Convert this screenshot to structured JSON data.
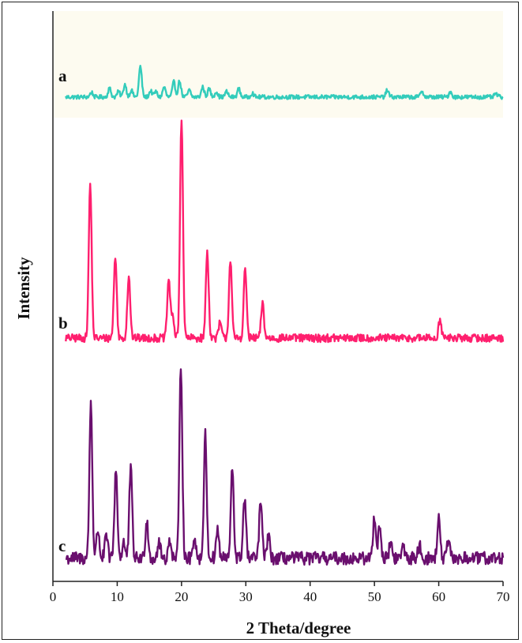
{
  "chart_data": {
    "type": "line",
    "xlabel": "2 Theta/degree",
    "ylabel": "Intensity",
    "xlim": [
      0,
      70
    ],
    "x_ticks": [
      0,
      10,
      20,
      30,
      40,
      50,
      60,
      70
    ],
    "y_ticks_shown": false,
    "grid": false,
    "legend": "none",
    "plot_background": "#fdfbf0",
    "series": [
      {
        "name": "a",
        "color": "#33ccbb",
        "baseline": 6,
        "noise": 3,
        "x_range": [
          2,
          70
        ],
        "peaks": [
          {
            "x": 6.0,
            "h": 7
          },
          {
            "x": 8.8,
            "h": 13
          },
          {
            "x": 10.2,
            "h": 8
          },
          {
            "x": 11.2,
            "h": 19
          },
          {
            "x": 12.2,
            "h": 10
          },
          {
            "x": 13.6,
            "h": 45
          },
          {
            "x": 15.2,
            "h": 9
          },
          {
            "x": 16.0,
            "h": 8
          },
          {
            "x": 17.3,
            "h": 15
          },
          {
            "x": 18.8,
            "h": 22
          },
          {
            "x": 19.7,
            "h": 24
          },
          {
            "x": 21.2,
            "h": 10
          },
          {
            "x": 23.3,
            "h": 15
          },
          {
            "x": 24.3,
            "h": 12
          },
          {
            "x": 25.4,
            "h": 8
          },
          {
            "x": 27.0,
            "h": 8
          },
          {
            "x": 28.9,
            "h": 12
          },
          {
            "x": 31.0,
            "h": 6
          },
          {
            "x": 52.0,
            "h": 10
          },
          {
            "x": 57.4,
            "h": 9
          },
          {
            "x": 61.8,
            "h": 8
          },
          {
            "x": 68.9,
            "h": 5
          }
        ]
      },
      {
        "name": "b",
        "color": "#ff1f6e",
        "baseline": 3,
        "noise": 2.5,
        "x_range": [
          2,
          70
        ],
        "peaks": [
          {
            "x": 5.8,
            "h": 98
          },
          {
            "x": 9.7,
            "h": 52
          },
          {
            "x": 11.8,
            "h": 40
          },
          {
            "x": 18.0,
            "h": 37
          },
          {
            "x": 18.6,
            "h": 15
          },
          {
            "x": 20.0,
            "h": 140
          },
          {
            "x": 24.0,
            "h": 55
          },
          {
            "x": 26.0,
            "h": 10
          },
          {
            "x": 27.6,
            "h": 50
          },
          {
            "x": 29.9,
            "h": 44
          },
          {
            "x": 32.6,
            "h": 22
          },
          {
            "x": 60.2,
            "h": 12
          }
        ]
      },
      {
        "name": "c",
        "color": "#6a0f6e",
        "baseline": 4,
        "noise": 4,
        "x_range": [
          2,
          70
        ],
        "peaks": [
          {
            "x": 5.9,
            "h": 96
          },
          {
            "x": 7.0,
            "h": 18
          },
          {
            "x": 8.3,
            "h": 14
          },
          {
            "x": 9.8,
            "h": 56
          },
          {
            "x": 11.0,
            "h": 10
          },
          {
            "x": 12.1,
            "h": 56
          },
          {
            "x": 14.6,
            "h": 24
          },
          {
            "x": 16.5,
            "h": 10
          },
          {
            "x": 18.2,
            "h": 12
          },
          {
            "x": 19.9,
            "h": 120
          },
          {
            "x": 22.0,
            "h": 14
          },
          {
            "x": 23.7,
            "h": 76
          },
          {
            "x": 25.6,
            "h": 18
          },
          {
            "x": 27.9,
            "h": 56
          },
          {
            "x": 29.8,
            "h": 38
          },
          {
            "x": 32.3,
            "h": 36
          },
          {
            "x": 33.5,
            "h": 14
          },
          {
            "x": 50.0,
            "h": 26
          },
          {
            "x": 50.8,
            "h": 20
          },
          {
            "x": 52.5,
            "h": 10
          },
          {
            "x": 54.5,
            "h": 8
          },
          {
            "x": 57.0,
            "h": 8
          },
          {
            "x": 60.0,
            "h": 24
          },
          {
            "x": 61.5,
            "h": 10
          }
        ]
      }
    ]
  }
}
